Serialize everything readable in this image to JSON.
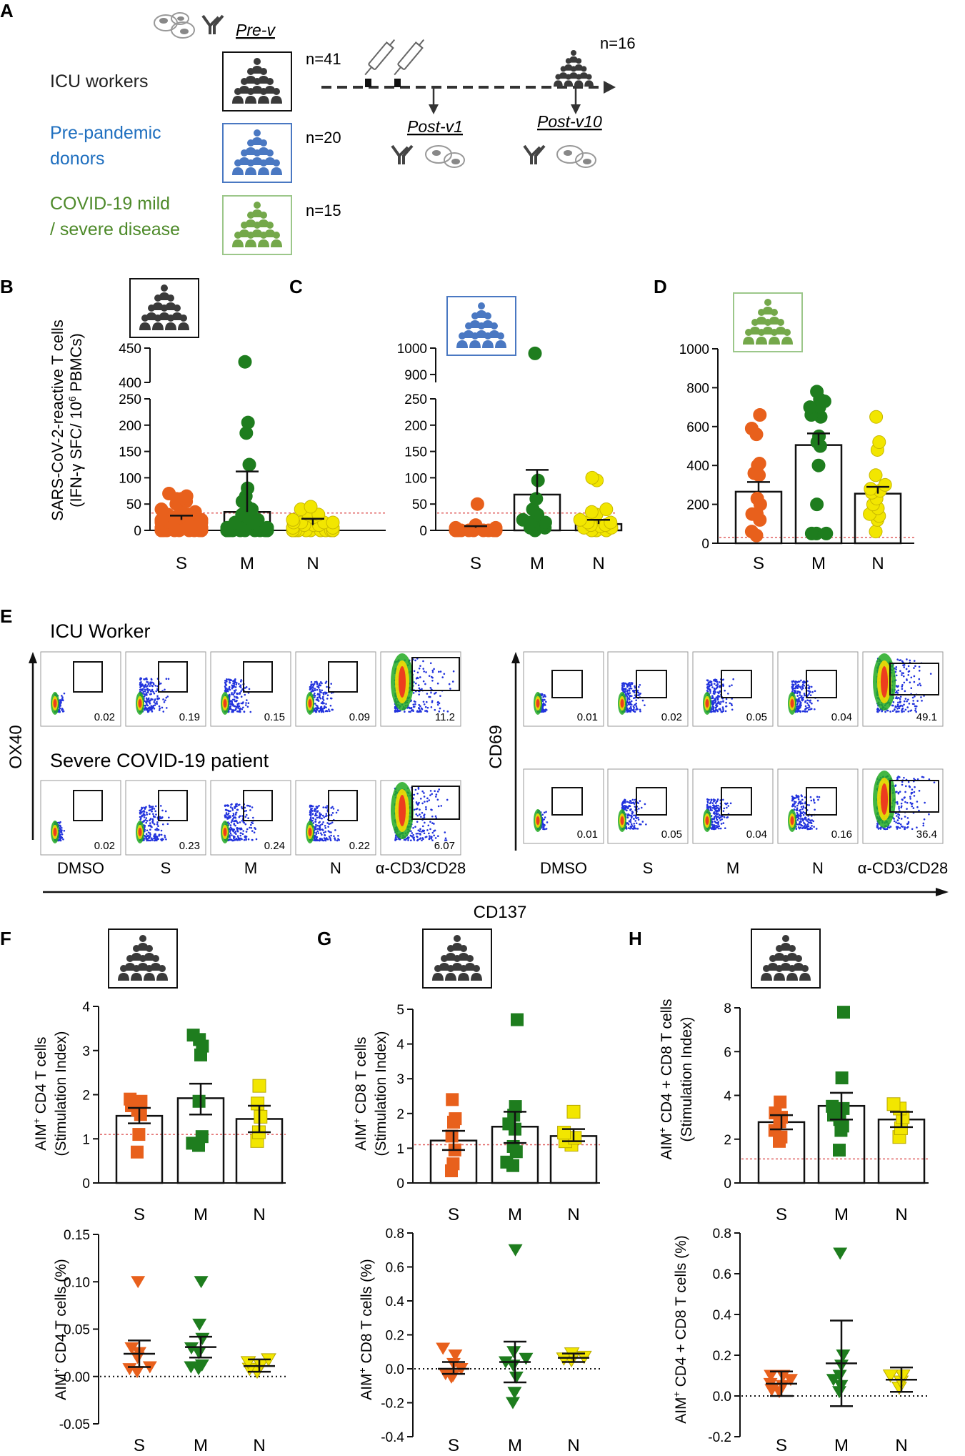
{
  "panel_labels": {
    "A": "A",
    "B": "B",
    "C": "C",
    "D": "D",
    "E": "E",
    "F": "F",
    "G": "G",
    "H": "H"
  },
  "colors": {
    "s": "#e8601c",
    "m": "#1e7d1e",
    "n": "#f2e600",
    "icu": "#3a3a3a",
    "pre": "#4a78c2",
    "covid": "#74a84a",
    "ref": "#e06060"
  },
  "panelA": {
    "pre_v": "Pre-v",
    "post_v1": "Post-v1",
    "post_v10": "Post-v10",
    "groups": [
      {
        "label_lines": [
          "ICU workers"
        ],
        "n": "n=41",
        "color": "#222222"
      },
      {
        "label_lines": [
          "Pre-pandemic",
          "donors"
        ],
        "n": "n=20",
        "color": "#1f6fbf"
      },
      {
        "label_lines": [
          "COVID-19   mild",
          "/ severe disease"
        ],
        "n": "n=15",
        "color": "#4e8a2a"
      }
    ],
    "post_n": "n=16"
  },
  "elispot": {
    "ylabel_line1": "SARS-CoV-2-reactive T cells",
    "ylabel_line2_pre": "(IFN-γ SFC/ 10",
    "ylabel_line2_sup": "6",
    "ylabel_line2_post": " PBMCs)"
  },
  "panelE": {
    "title_icu": "ICU Worker",
    "title_severe": "Severe COVID-19 patient",
    "y_ox40": "OX40",
    "y_cd69": "CD69",
    "x_cd137": "CD137",
    "cond_labels": [
      "DMSO",
      "S",
      "M",
      "N",
      "α-CD3/CD28"
    ],
    "ox40_icu": [
      "0.02",
      "0.19",
      "0.15",
      "0.09",
      "11.2"
    ],
    "ox40_severe": [
      "0.02",
      "0.23",
      "0.24",
      "0.22",
      "6.07"
    ],
    "cd69_icu": [
      "0.01",
      "0.02",
      "0.05",
      "0.04",
      "49.1"
    ],
    "cd69_severe": [
      "0.01",
      "0.05",
      "0.04",
      "0.16",
      "36.4"
    ]
  },
  "chart_data": [
    {
      "id": "B",
      "type": "bar",
      "title": "B",
      "categories": [
        "S",
        "M",
        "N"
      ],
      "ylabel": "SARS-CoV-2-reactive T cells (IFN-γ SFC/ 10^6 PBMCs)",
      "ylim": [
        0,
        460
      ],
      "broken_axis": {
        "lower": [
          0,
          250
        ],
        "upper": [
          400,
          450
        ]
      },
      "yticks": [
        0,
        50,
        100,
        150,
        200,
        250,
        400,
        450
      ],
      "means": [
        20,
        35,
        10
      ],
      "sem_upper": [
        28,
        112,
        22
      ],
      "reference": 33,
      "points": [
        [
          0,
          0,
          0,
          0,
          0,
          0,
          0,
          0,
          0,
          0,
          0,
          0,
          5,
          5,
          5,
          5,
          8,
          8,
          8,
          10,
          10,
          12,
          12,
          15,
          15,
          18,
          20,
          20,
          25,
          25,
          30,
          30,
          35,
          40,
          45,
          50,
          55,
          60,
          60,
          65,
          70
        ],
        [
          0,
          0,
          0,
          0,
          0,
          0,
          0,
          0,
          0,
          0,
          0,
          0,
          0,
          0,
          5,
          5,
          5,
          5,
          10,
          10,
          15,
          15,
          20,
          25,
          30,
          40,
          45,
          55,
          65,
          80,
          125,
          185,
          205,
          430
        ],
        [
          0,
          0,
          0,
          0,
          0,
          0,
          0,
          0,
          0,
          0,
          0,
          0,
          0,
          0,
          0,
          0,
          0,
          5,
          5,
          5,
          5,
          10,
          10,
          10,
          15,
          15,
          15,
          15,
          20,
          25,
          30,
          30,
          40,
          45
        ]
      ]
    },
    {
      "id": "C",
      "type": "bar",
      "title": "C",
      "categories": [
        "S",
        "M",
        "N"
      ],
      "ylim": [
        0,
        1010
      ],
      "broken_axis": {
        "lower": [
          0,
          250
        ],
        "upper": [
          870,
          1000
        ]
      },
      "yticks": [
        0,
        50,
        100,
        150,
        200,
        250,
        900,
        1000
      ],
      "means": [
        5,
        68,
        12
      ],
      "sem_upper": [
        8,
        115,
        20
      ],
      "reference": 33,
      "points": [
        [
          0,
          0,
          0,
          0,
          0,
          0,
          0,
          0,
          0,
          0,
          0,
          0,
          0,
          5,
          5,
          10,
          50
        ],
        [
          0,
          5,
          5,
          10,
          15,
          15,
          20,
          30,
          40,
          60,
          95,
          980
        ],
        [
          0,
          0,
          0,
          5,
          5,
          8,
          10,
          10,
          15,
          15,
          20,
          30,
          35,
          40,
          95,
          100
        ]
      ]
    },
    {
      "id": "D",
      "type": "bar",
      "title": "D",
      "categories": [
        "S",
        "M",
        "N"
      ],
      "ylim": [
        0,
        1000
      ],
      "yticks": [
        0,
        200,
        400,
        600,
        800,
        1000
      ],
      "means": [
        265,
        505,
        255
      ],
      "sem_upper": [
        315,
        565,
        290
      ],
      "reference": 30,
      "points": [
        [
          40,
          60,
          120,
          150,
          150,
          200,
          230,
          350,
          360,
          400,
          410,
          560,
          590,
          660
        ],
        [
          50,
          50,
          50,
          200,
          400,
          500,
          520,
          550,
          650,
          660,
          700,
          700,
          730,
          740,
          780
        ],
        [
          60,
          120,
          140,
          150,
          180,
          200,
          230,
          260,
          270,
          280,
          300,
          350,
          480,
          520,
          650
        ]
      ]
    },
    {
      "id": "F-top",
      "type": "bar",
      "title": "F",
      "categories": [
        "S",
        "M",
        "N"
      ],
      "ylabel": "AIM+ CD4 T cells (Stimulation Index)",
      "ylim": [
        0,
        4.2
      ],
      "yticks": [
        0,
        1,
        2,
        3,
        4
      ],
      "means": [
        1.52,
        1.92,
        1.45
      ],
      "sem_lower": [
        1.35,
        1.55,
        1.15
      ],
      "sem_upper": [
        1.7,
        2.25,
        1.75
      ],
      "reference": 1.1,
      "points": [
        [
          0.7,
          1.1,
          1.55,
          1.65,
          1.75,
          1.85,
          1.9
        ],
        [
          0.85,
          0.9,
          1.05,
          1.85,
          2.9,
          3.1,
          3.25,
          3.35
        ],
        [
          0.95,
          1.15,
          1.5,
          1.8,
          2.2
        ]
      ]
    },
    {
      "id": "F-bottom",
      "type": "scatter",
      "categories": [
        "S",
        "M",
        "N"
      ],
      "ylabel": "AIM+ CD4 T cells (%)",
      "ylim": [
        -0.05,
        0.15
      ],
      "yticks": [
        -0.05,
        0.0,
        0.05,
        0.1,
        0.15
      ],
      "means": [
        0.024,
        0.031,
        0.011
      ],
      "sem_lower": [
        0.01,
        0.02,
        0.005
      ],
      "sem_upper": [
        0.038,
        0.042,
        0.018
      ],
      "reference": 0.0,
      "points": [
        [
          0.005,
          0.008,
          0.01,
          0.02,
          0.025,
          0.03,
          0.1
        ],
        [
          0.008,
          0.01,
          0.012,
          0.025,
          0.03,
          0.04,
          0.055,
          0.1
        ],
        [
          0.005,
          0.008,
          0.012,
          0.015,
          0.018
        ]
      ]
    },
    {
      "id": "G-top",
      "type": "bar",
      "title": "G",
      "categories": [
        "S",
        "M",
        "N"
      ],
      "ylabel": "AIM+ CD8 T cells (Stimulation Index)",
      "ylim": [
        0,
        5.2
      ],
      "yticks": [
        0,
        1,
        2,
        3,
        4,
        5
      ],
      "means": [
        1.22,
        1.62,
        1.35
      ],
      "sem_lower": [
        0.95,
        1.15,
        1.2
      ],
      "sem_upper": [
        1.5,
        2.05,
        1.55
      ],
      "reference": 1.1,
      "points": [
        [
          0.35,
          0.55,
          0.95,
          1.35,
          1.75,
          1.85,
          2.4
        ],
        [
          0.5,
          0.6,
          0.9,
          1.05,
          1.55,
          1.7,
          1.95,
          2.2,
          4.7
        ],
        [
          1.1,
          1.2,
          1.3,
          1.45,
          2.05
        ]
      ]
    },
    {
      "id": "G-bottom",
      "type": "scatter",
      "categories": [
        "S",
        "M",
        "N"
      ],
      "ylabel": "AIM+ CD8 T cells (%)",
      "ylim": [
        -0.4,
        0.8
      ],
      "yticks": [
        -0.4,
        -0.2,
        0.0,
        0.2,
        0.4,
        0.6,
        0.8
      ],
      "means": [
        0.0,
        0.04,
        0.065
      ],
      "sem_lower": [
        -0.03,
        -0.08,
        0.04
      ],
      "sem_upper": [
        0.04,
        0.16,
        0.09
      ],
      "reference": 0.0,
      "points": [
        [
          -0.05,
          -0.04,
          -0.03,
          0.0,
          0.03,
          0.08,
          0.12
        ],
        [
          -0.2,
          -0.14,
          -0.05,
          0.02,
          0.04,
          0.06,
          0.1,
          0.7
        ],
        [
          0.05,
          0.06,
          0.07,
          0.09
        ]
      ]
    },
    {
      "id": "H-top",
      "type": "bar",
      "title": "H",
      "categories": [
        "S",
        "M",
        "N"
      ],
      "ylabel": "AIM+ CD4 + CD8 T cells (Stimulation Index)",
      "ylim": [
        0,
        8.4
      ],
      "yticks": [
        0,
        2,
        4,
        6,
        8
      ],
      "means": [
        2.78,
        3.52,
        2.9
      ],
      "sem_lower": [
        2.45,
        2.9,
        2.55
      ],
      "sem_upper": [
        3.1,
        4.12,
        3.25
      ],
      "reference": 1.1,
      "points": [
        [
          1.9,
          2.1,
          2.4,
          2.8,
          3.0,
          3.2,
          3.7
        ],
        [
          1.5,
          2.4,
          2.6,
          2.9,
          3.1,
          3.4,
          3.5,
          4.8,
          7.8
        ],
        [
          2.1,
          2.5,
          3.0,
          3.4,
          3.6
        ]
      ]
    },
    {
      "id": "H-bottom",
      "type": "scatter",
      "categories": [
        "S",
        "M",
        "N"
      ],
      "ylabel": "AIM+ CD4 + CD8 T cells (%)",
      "ylim": [
        -0.2,
        0.8
      ],
      "yticks": [
        -0.2,
        0.0,
        0.2,
        0.4,
        0.6,
        0.8
      ],
      "means": [
        0.06,
        0.16,
        0.08
      ],
      "sem_lower": [
        0.0,
        -0.05,
        0.02
      ],
      "sem_upper": [
        0.12,
        0.37,
        0.14
      ],
      "reference": 0.0,
      "points": [
        [
          0.02,
          0.03,
          0.05,
          0.06,
          0.08,
          0.1,
          0.1
        ],
        [
          0.02,
          0.05,
          0.08,
          0.1,
          0.15,
          0.2,
          0.7
        ],
        [
          0.04,
          0.07,
          0.1,
          0.1
        ]
      ]
    }
  ]
}
